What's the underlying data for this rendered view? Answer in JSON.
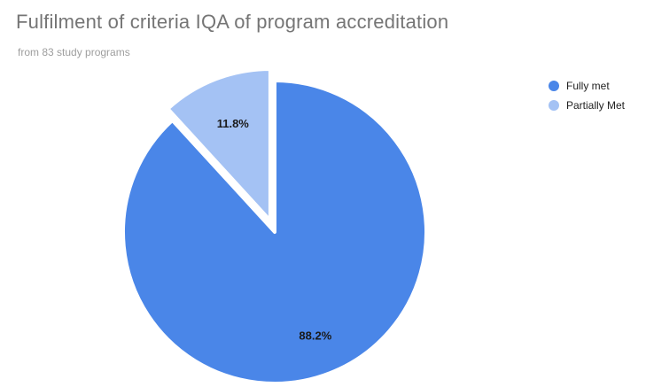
{
  "chart_data": {
    "type": "pie",
    "title": "Fulfilment of criteria IQA of program accreditation",
    "subtitle": "from 83 study programs",
    "categories": [
      "Fully met",
      "Partially Met"
    ],
    "values": [
      88.2,
      11.8
    ],
    "data_labels": [
      "88.2%",
      "11.8%"
    ],
    "colors": [
      "#4a86e8",
      "#a4c2f4"
    ],
    "exploded": [
      false,
      true
    ],
    "legend_position": "right"
  }
}
